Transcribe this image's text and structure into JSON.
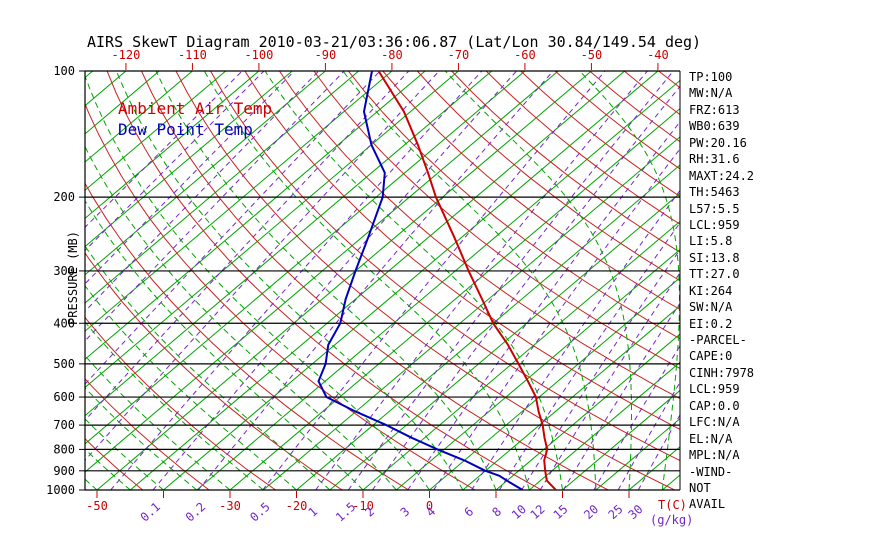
{
  "title": "AIRS SkewT Diagram 2010-03-21/03:36:06.87 (Lat/Lon 30.84/149.54 deg)",
  "legend": {
    "ambient_label": "Ambient Air Temp",
    "dewpoint_label": "Dew Point Temp"
  },
  "y_axis": {
    "label": "PRESSURE (MB)",
    "ticks": [
      100,
      200,
      300,
      400,
      500,
      600,
      700,
      800,
      900,
      1000
    ]
  },
  "top_axis": {
    "labels": [
      "-120",
      "-110",
      "-100",
      "-90",
      "-80",
      "-70",
      "-60",
      "-50",
      "-40"
    ]
  },
  "bottom_axis": {
    "temp_labels": [
      "-50",
      "-30",
      "-20",
      "-10",
      "0"
    ],
    "temp_ticks": [
      -50,
      -40,
      -30,
      -20,
      -10,
      0,
      10,
      20,
      30
    ],
    "temp_unit": "T(C)",
    "mixing_labels": [
      "0.1",
      "0.2",
      "0.5",
      "1",
      "1.5",
      "2",
      "3",
      "4",
      "6",
      "8",
      "10",
      "12",
      "15",
      "20",
      "25",
      "30"
    ],
    "mixing_unit": "(g/kg)"
  },
  "stats_lines": [
    "TP:100",
    "MW:N/A",
    "FRZ:613",
    "WB0:639",
    "PW:20.16",
    "RH:31.6",
    "MAXT:24.2",
    "TH:5463",
    "L57:5.5",
    "LCL:959",
    "LI:5.8",
    "SI:13.8",
    "TT:27.0",
    "KI:264",
    "SW:N/A",
    "EI:0.2",
    "-PARCEL-",
    "CAPE:0",
    "CINH:7978",
    "LCL:959",
    "CAP:0.0",
    "LFC:N/A",
    "EL:N/A",
    "MPL:N/A",
    "-WIND-",
    "NOT",
    "AVAIL"
  ],
  "colors": {
    "ambient": "#cc0000",
    "dewpoint": "#0000bb",
    "isotherm": "#00a400",
    "dry_adiabat": "#cc2222",
    "mixing_ratio": "#7425cc",
    "moist_adiabat": "#00a400",
    "pressure_line": "#000000"
  },
  "chart_data": {
    "type": "line",
    "subtype": "skewt-log-p",
    "title": "AIRS SkewT Diagram 2010-03-21/03:36:06.87 (Lat/Lon 30.84/149.54 deg)",
    "xlabel": "T(C)",
    "ylabel": "PRESSURE (MB)",
    "pressure_range_mb": [
      100,
      1000
    ],
    "pressure_scale": "log",
    "temp_range_at_surface_c": [
      -52,
      38
    ],
    "skew": "45deg",
    "series": [
      {
        "name": "Ambient Air Temp",
        "color": "#cc0000",
        "points_p_t": [
          [
            1000,
            19
          ],
          [
            950,
            16
          ],
          [
            925,
            15
          ],
          [
            900,
            14
          ],
          [
            850,
            12
          ],
          [
            800,
            10.5
          ],
          [
            750,
            8
          ],
          [
            700,
            5.5
          ],
          [
            650,
            2.5
          ],
          [
            600,
            -0.5
          ],
          [
            550,
            -4.5
          ],
          [
            500,
            -9
          ],
          [
            450,
            -14
          ],
          [
            400,
            -20
          ],
          [
            350,
            -26
          ],
          [
            300,
            -33
          ],
          [
            250,
            -41
          ],
          [
            200,
            -51
          ],
          [
            175,
            -56.5
          ],
          [
            150,
            -63
          ],
          [
            125,
            -71
          ],
          [
            100,
            -82
          ]
        ]
      },
      {
        "name": "Dew Point Temp",
        "color": "#0000bb",
        "points_p_t": [
          [
            1000,
            14
          ],
          [
            950,
            10
          ],
          [
            925,
            8
          ],
          [
            900,
            5
          ],
          [
            850,
            0
          ],
          [
            800,
            -6
          ],
          [
            750,
            -12
          ],
          [
            700,
            -18
          ],
          [
            650,
            -25
          ],
          [
            600,
            -32
          ],
          [
            550,
            -36
          ],
          [
            500,
            -38
          ],
          [
            450,
            -41
          ],
          [
            400,
            -43
          ],
          [
            350,
            -46.5
          ],
          [
            300,
            -50
          ],
          [
            250,
            -54
          ],
          [
            200,
            -59
          ],
          [
            175,
            -63
          ],
          [
            150,
            -70
          ],
          [
            125,
            -77
          ],
          [
            100,
            -83
          ]
        ]
      }
    ],
    "background_lines": {
      "isotherms_c": {
        "min": -130,
        "max": 40,
        "step": 5,
        "style": "solid",
        "color": "#00a400"
      },
      "dry_adiabats_theta_k": {
        "min": 230,
        "max": 460,
        "step": 10,
        "style": "solid",
        "color": "#cc2222"
      },
      "moist_adiabats_t1000_c": {
        "min": -60,
        "max": 40,
        "step": 5,
        "style": "dashed",
        "color": "#00a400"
      },
      "mixing_ratio_g_kg": [
        0.0001,
        0.0002,
        0.0005,
        0.001,
        0.002,
        0.005,
        0.01,
        0.02,
        0.05,
        0.1,
        0.2,
        0.5,
        1,
        1.5,
        2,
        3,
        4,
        6,
        8,
        10,
        12,
        15,
        20,
        25,
        30
      ],
      "pressure_lines_mb": [
        100,
        200,
        300,
        400,
        500,
        600,
        700,
        800,
        900,
        1000
      ]
    }
  }
}
